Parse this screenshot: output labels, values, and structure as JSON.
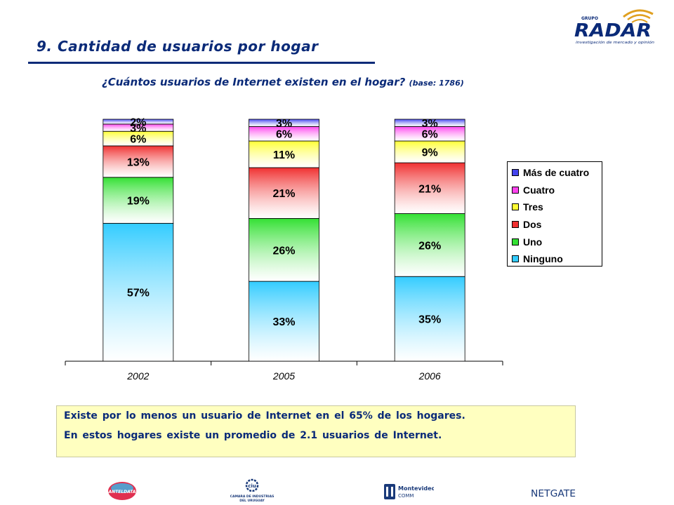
{
  "header": {
    "title": "9. Cantidad de usuarios por hogar",
    "subtitle_main": "¿Cuántos usuarios de Internet existen en el hogar?",
    "subtitle_base": "(base: 1786)"
  },
  "logo_radar": {
    "small_text": "GRUPO",
    "name": "RADAR",
    "tagline": "investigación de mercado y opinión",
    "color": "#0a2a78",
    "accent": "#e0a020"
  },
  "chart_data": {
    "type": "bar",
    "stacked": true,
    "categories": [
      "2002",
      "2005",
      "2006"
    ],
    "ylim": [
      0,
      100
    ],
    "series": [
      {
        "name": "Ninguno",
        "color": "#33ccff",
        "values": [
          57,
          33,
          35
        ],
        "labels": [
          "57%",
          "33%",
          "35%"
        ]
      },
      {
        "name": "Uno",
        "color": "#33e033",
        "values": [
          19,
          26,
          26
        ],
        "labels": [
          "19%",
          "26%",
          "26%"
        ]
      },
      {
        "name": "Dos",
        "color": "#f03030",
        "values": [
          13,
          21,
          21
        ],
        "labels": [
          "13%",
          "21%",
          "21%"
        ]
      },
      {
        "name": "Tres",
        "color": "#ffff33",
        "values": [
          6,
          11,
          9
        ],
        "labels": [
          "6%",
          "11%",
          "9%"
        ]
      },
      {
        "name": "Cuatro",
        "color": "#ff44ee",
        "values": [
          3,
          6,
          6
        ],
        "labels": [
          "3%",
          "6%",
          "6%"
        ]
      },
      {
        "name": "Más de cuatro",
        "color": "#4444ee",
        "values": [
          2,
          3,
          3
        ],
        "labels": [
          "2%",
          "3%",
          "3%"
        ]
      }
    ],
    "legend_position": "right",
    "legend_order": [
      "Más de cuatro",
      "Cuatro",
      "Tres",
      "Dos",
      "Uno",
      "Ninguno"
    ],
    "grid": false
  },
  "note": {
    "line1": "Existe por lo menos un usuario de Internet en el 65% de los hogares.",
    "line2": "En estos hogares existe un promedio de 2.1 usuarios de Internet."
  },
  "footer": {
    "logo1": "ANTELDATA",
    "logo2_mark": "ciu",
    "logo2_line1": "CAMARA DE INDUSTRIAS",
    "logo2_line2": "DEL URUGUAY",
    "logo3_line1": "Montevideo",
    "logo3_line2": "COMM",
    "logo4": "NETGATE"
  }
}
